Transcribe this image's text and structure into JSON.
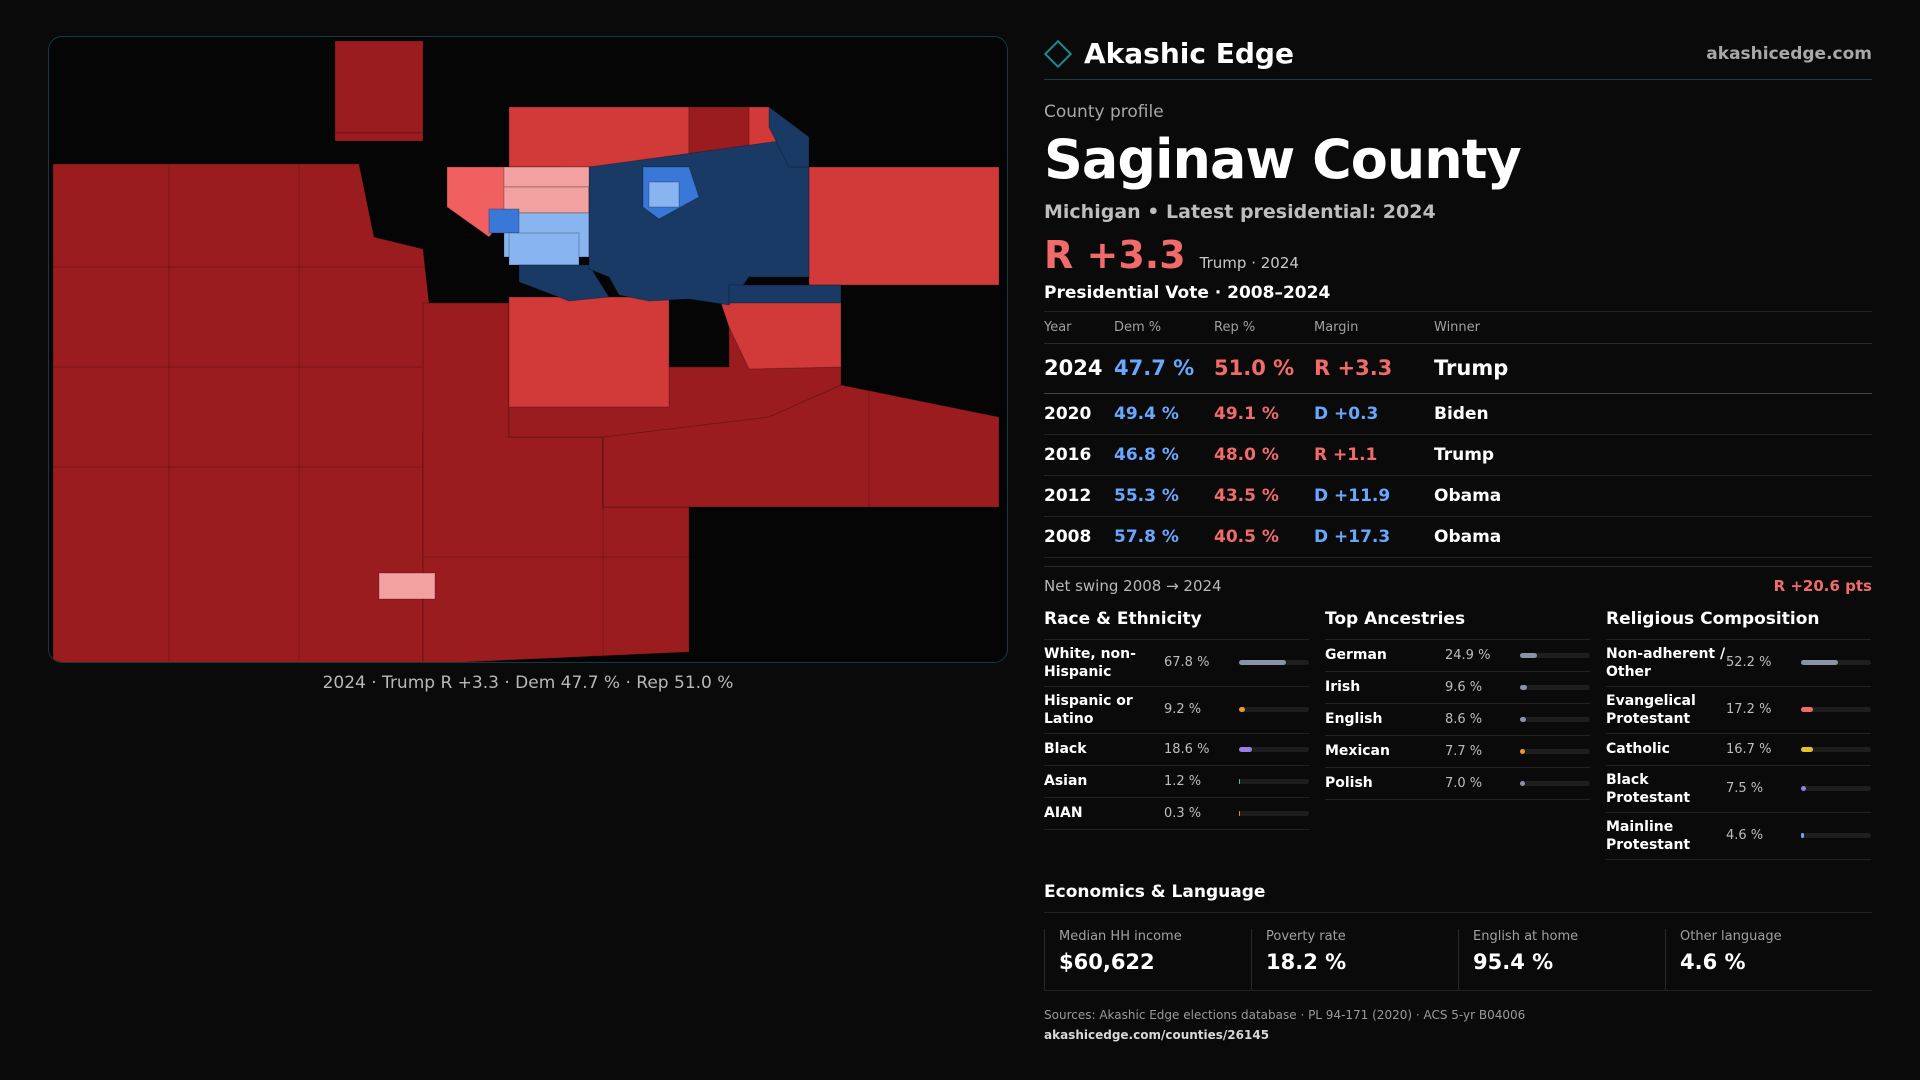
{
  "brand": {
    "name": "Akashic Edge",
    "site": "akashicedge.com",
    "logo_icon": "diamond-outline-icon",
    "accent": "#1e8a8f"
  },
  "profile": {
    "kicker": "County profile",
    "county": "Saginaw County",
    "subtitle": "Michigan • Latest presidential: 2024",
    "margin": "R +3.3",
    "margin_detail": "Trump · 2024"
  },
  "map": {
    "caption": "2024 · Trump R +3.3 · Dem 47.7 % · Rep 51.0 %",
    "colors": {
      "strong_rep": "#9b1c1f",
      "mid_rep": "#d23a3a",
      "light_rep": "#f06060",
      "pale_rep": "#f3a0a0",
      "strong_dem": "#1a3a66",
      "mid_dem": "#3a78d8",
      "light_dem": "#88b4f0"
    }
  },
  "votes": {
    "title": "Presidential Vote · 2008–2024",
    "headers": [
      "Year",
      "Dem %",
      "Rep %",
      "Margin",
      "Winner"
    ],
    "rows": [
      {
        "year": "2024",
        "dem": "47.7 %",
        "rep": "51.0 %",
        "margin": "R +3.3",
        "party": "rep",
        "winner": "Trump"
      },
      {
        "year": "2020",
        "dem": "49.4 %",
        "rep": "49.1 %",
        "margin": "D +0.3",
        "party": "dem",
        "winner": "Biden"
      },
      {
        "year": "2016",
        "dem": "46.8 %",
        "rep": "48.0 %",
        "margin": "R +1.1",
        "party": "rep",
        "winner": "Trump"
      },
      {
        "year": "2012",
        "dem": "55.3 %",
        "rep": "43.5 %",
        "margin": "D +11.9",
        "party": "dem",
        "winner": "Obama"
      },
      {
        "year": "2008",
        "dem": "57.8 %",
        "rep": "40.5 %",
        "margin": "D +17.3",
        "party": "dem",
        "winner": "Obama"
      }
    ],
    "swing_label": "Net swing 2008 → 2024",
    "swing_value": "R +20.6 pts"
  },
  "race": {
    "title": "Race & Ethnicity",
    "items": [
      {
        "label": "White, non-Hispanic",
        "value": "67.8 %",
        "pct": 67.8,
        "color": "#8a93a6"
      },
      {
        "label": "Hispanic or Latino",
        "value": "9.2 %",
        "pct": 9.2,
        "color": "#e89a2c"
      },
      {
        "label": "Black",
        "value": "18.6 %",
        "pct": 18.6,
        "color": "#9a7ee8"
      },
      {
        "label": "Asian",
        "value": "1.2 %",
        "pct": 1.2,
        "color": "#3cc6b8"
      },
      {
        "label": "AIAN",
        "value": "0.3 %",
        "pct": 0.3,
        "color": "#e8884c"
      }
    ]
  },
  "ancestry": {
    "title": "Top Ancestries",
    "items": [
      {
        "label": "German",
        "value": "24.9 %",
        "pct": 24.9,
        "color": "#8a93a6"
      },
      {
        "label": "Irish",
        "value": "9.6 %",
        "pct": 9.6,
        "color": "#8a93a6"
      },
      {
        "label": "English",
        "value": "8.6 %",
        "pct": 8.6,
        "color": "#8a93a6"
      },
      {
        "label": "Mexican",
        "value": "7.7 %",
        "pct": 7.7,
        "color": "#e89a2c"
      },
      {
        "label": "Polish",
        "value": "7.0 %",
        "pct": 7.0,
        "color": "#8a93a6"
      }
    ]
  },
  "religion": {
    "title": "Religious Composition",
    "items": [
      {
        "label": "Non-adherent / Other",
        "value": "52.2 %",
        "pct": 52.2,
        "color": "#8a93a6"
      },
      {
        "label": "Evangelical Protestant",
        "value": "17.2 %",
        "pct": 17.2,
        "color": "#f26b6b"
      },
      {
        "label": "Catholic",
        "value": "16.7 %",
        "pct": 16.7,
        "color": "#e8c02c"
      },
      {
        "label": "Black Protestant",
        "value": "7.5 %",
        "pct": 7.5,
        "color": "#9a7ee8"
      },
      {
        "label": "Mainline Protestant",
        "value": "4.6 %",
        "pct": 4.6,
        "color": "#6aa7ff"
      }
    ]
  },
  "economics": {
    "title": "Economics & Language",
    "cells": [
      {
        "label": "Median HH income",
        "value": "$60,622"
      },
      {
        "label": "Poverty rate",
        "value": "18.2 %"
      },
      {
        "label": "English at home",
        "value": "95.4 %"
      },
      {
        "label": "Other language",
        "value": "4.6 %"
      }
    ]
  },
  "sources": {
    "text": "Sources: Akashic Edge elections database · PL 94-171 (2020) · ACS 5-yr B04006",
    "url": "akashicedge.com/counties/26145"
  }
}
